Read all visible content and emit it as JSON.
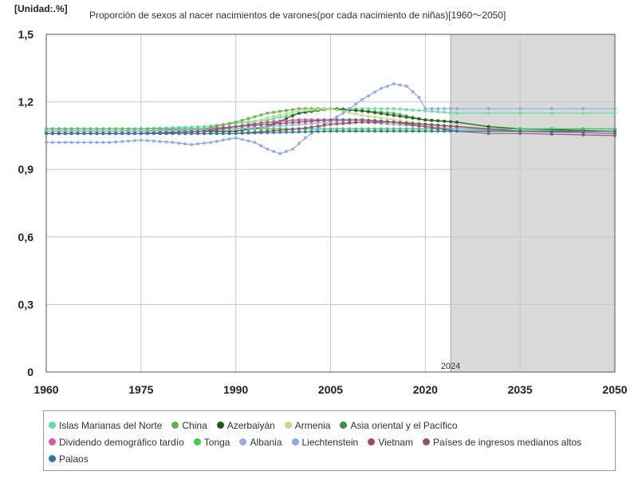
{
  "unit_label": "[Unidad:.%]",
  "title": "Proporción de sexos al nacer nacimientos de varones(por cada nacimiento de niñas)[1960〜2050]",
  "chart_data": {
    "type": "line",
    "title": "Proporción de sexos al nacer nacimientos de varones(por cada nacimiento de niñas)[1960〜2050]",
    "unit": "[Unidad:.%]",
    "xlim": [
      1960,
      2050
    ],
    "ylim": [
      0,
      1.5
    ],
    "x_ticks": [
      "1960",
      "1975",
      "1990",
      "2005",
      "2020",
      "2035",
      "2050"
    ],
    "x_tick_values": [
      1960,
      1975,
      1990,
      2005,
      2020,
      2035,
      2050
    ],
    "y_ticks": [
      "0",
      "0,3",
      "0,6",
      "0,9",
      "1,2",
      "1,5"
    ],
    "y_tick_values": [
      0,
      0.3,
      0.6,
      0.9,
      1.2,
      1.5
    ],
    "grid": true,
    "projection_start": 2024,
    "projection_label": "2024",
    "legend_position": "bottom",
    "series": [
      {
        "name": "Islas Marianas del Norte",
        "color": "#5ee0a0",
        "points": [
          [
            1960,
            1.08
          ],
          [
            1975,
            1.08
          ],
          [
            1985,
            1.09
          ],
          [
            1995,
            1.12
          ],
          [
            2000,
            1.15
          ],
          [
            2005,
            1.17
          ],
          [
            2010,
            1.17
          ],
          [
            2015,
            1.17
          ],
          [
            2020,
            1.16
          ],
          [
            2025,
            1.15
          ],
          [
            2035,
            1.15
          ],
          [
            2050,
            1.15
          ]
        ]
      },
      {
        "name": "China",
        "color": "#6ab04c",
        "points": [
          [
            1960,
            1.07
          ],
          [
            1975,
            1.07
          ],
          [
            1985,
            1.08
          ],
          [
            1990,
            1.11
          ],
          [
            1995,
            1.15
          ],
          [
            2000,
            1.17
          ],
          [
            2005,
            1.17
          ],
          [
            2010,
            1.16
          ],
          [
            2015,
            1.15
          ],
          [
            2020,
            1.12
          ],
          [
            2025,
            1.11
          ],
          [
            2030,
            1.09
          ],
          [
            2035,
            1.08
          ],
          [
            2050,
            1.08
          ]
        ]
      },
      {
        "name": "Azerbaiyán",
        "color": "#1a5c1a",
        "points": [
          [
            1960,
            1.06
          ],
          [
            1975,
            1.06
          ],
          [
            1985,
            1.07
          ],
          [
            1990,
            1.07
          ],
          [
            1995,
            1.09
          ],
          [
            2000,
            1.15
          ],
          [
            2005,
            1.17
          ],
          [
            2010,
            1.16
          ],
          [
            2015,
            1.14
          ],
          [
            2020,
            1.12
          ],
          [
            2025,
            1.11
          ],
          [
            2030,
            1.09
          ],
          [
            2035,
            1.08
          ],
          [
            2050,
            1.07
          ]
        ]
      },
      {
        "name": "Armenia",
        "color": "#b8e08a",
        "points": [
          [
            1960,
            1.07
          ],
          [
            1975,
            1.07
          ],
          [
            1990,
            1.08
          ],
          [
            1995,
            1.13
          ],
          [
            2000,
            1.16
          ],
          [
            2005,
            1.17
          ],
          [
            2010,
            1.14
          ],
          [
            2015,
            1.12
          ],
          [
            2020,
            1.1
          ],
          [
            2025,
            1.09
          ],
          [
            2035,
            1.07
          ],
          [
            2050,
            1.07
          ]
        ]
      },
      {
        "name": "Asia oriental y el Pacífico",
        "color": "#3a8a4a",
        "points": [
          [
            1960,
            1.07
          ],
          [
            1975,
            1.07
          ],
          [
            1985,
            1.08
          ],
          [
            1990,
            1.09
          ],
          [
            1995,
            1.11
          ],
          [
            2000,
            1.12
          ],
          [
            2005,
            1.12
          ],
          [
            2010,
            1.12
          ],
          [
            2015,
            1.11
          ],
          [
            2020,
            1.1
          ],
          [
            2025,
            1.09
          ],
          [
            2035,
            1.07
          ],
          [
            2050,
            1.07
          ]
        ]
      },
      {
        "name": "Dividendo demográfico tardío",
        "color": "#e055a8",
        "points": [
          [
            1960,
            1.07
          ],
          [
            1975,
            1.07
          ],
          [
            1985,
            1.08
          ],
          [
            1990,
            1.09
          ],
          [
            1995,
            1.11
          ],
          [
            2000,
            1.12
          ],
          [
            2005,
            1.12
          ],
          [
            2010,
            1.12
          ],
          [
            2015,
            1.11
          ],
          [
            2020,
            1.09
          ],
          [
            2025,
            1.08
          ],
          [
            2035,
            1.07
          ],
          [
            2050,
            1.07
          ]
        ]
      },
      {
        "name": "Tonga",
        "color": "#44cc44",
        "points": [
          [
            1960,
            1.08
          ],
          [
            1975,
            1.08
          ],
          [
            1990,
            1.08
          ],
          [
            2005,
            1.08
          ],
          [
            2020,
            1.08
          ],
          [
            2035,
            1.08
          ],
          [
            2050,
            1.08
          ]
        ]
      },
      {
        "name": "Albania",
        "color": "#9aaee0",
        "points": [
          [
            1960,
            1.07
          ],
          [
            1975,
            1.07
          ],
          [
            1990,
            1.08
          ],
          [
            1995,
            1.09
          ],
          [
            2000,
            1.1
          ],
          [
            2005,
            1.11
          ],
          [
            2010,
            1.11
          ],
          [
            2015,
            1.1
          ],
          [
            2020,
            1.09
          ],
          [
            2025,
            1.08
          ],
          [
            2035,
            1.07
          ],
          [
            2050,
            1.07
          ]
        ]
      },
      {
        "name": "Liechtenstein",
        "color": "#8ca8e8",
        "points": [
          [
            1960,
            1.02
          ],
          [
            1965,
            1.02
          ],
          [
            1970,
            1.02
          ],
          [
            1975,
            1.03
          ],
          [
            1980,
            1.02
          ],
          [
            1983,
            1.01
          ],
          [
            1986,
            1.02
          ],
          [
            1990,
            1.04
          ],
          [
            1993,
            1.02
          ],
          [
            1995,
            0.99
          ],
          [
            1997,
            0.97
          ],
          [
            1999,
            0.99
          ],
          [
            2001,
            1.04
          ],
          [
            2004,
            1.1
          ],
          [
            2007,
            1.15
          ],
          [
            2010,
            1.21
          ],
          [
            2013,
            1.26
          ],
          [
            2015,
            1.28
          ],
          [
            2017,
            1.27
          ],
          [
            2019,
            1.22
          ],
          [
            2020,
            1.17
          ],
          [
            2025,
            1.17
          ],
          [
            2035,
            1.17
          ],
          [
            2050,
            1.17
          ]
        ]
      },
      {
        "name": "Vietnam",
        "color": "#9a4a6a",
        "points": [
          [
            1960,
            1.06
          ],
          [
            1975,
            1.06
          ],
          [
            1990,
            1.06
          ],
          [
            1995,
            1.07
          ],
          [
            2000,
            1.08
          ],
          [
            2005,
            1.1
          ],
          [
            2010,
            1.11
          ],
          [
            2015,
            1.11
          ],
          [
            2020,
            1.1
          ],
          [
            2025,
            1.09
          ],
          [
            2030,
            1.08
          ],
          [
            2035,
            1.07
          ],
          [
            2050,
            1.06
          ]
        ]
      },
      {
        "name": "Países de ingresos medianos altos",
        "color": "#8a5a6a",
        "points": [
          [
            1960,
            1.06
          ],
          [
            1975,
            1.06
          ],
          [
            1985,
            1.07
          ],
          [
            1990,
            1.09
          ],
          [
            1995,
            1.1
          ],
          [
            2000,
            1.11
          ],
          [
            2005,
            1.12
          ],
          [
            2010,
            1.12
          ],
          [
            2015,
            1.11
          ],
          [
            2020,
            1.09
          ],
          [
            2025,
            1.07
          ],
          [
            2030,
            1.06
          ],
          [
            2035,
            1.06
          ],
          [
            2050,
            1.05
          ]
        ]
      },
      {
        "name": "Palaos",
        "color": "#2a7aa8",
        "points": [
          [
            1960,
            1.06
          ],
          [
            1975,
            1.06
          ],
          [
            1990,
            1.06
          ],
          [
            2005,
            1.07
          ],
          [
            2020,
            1.07
          ],
          [
            2035,
            1.07
          ],
          [
            2050,
            1.07
          ]
        ]
      }
    ]
  }
}
